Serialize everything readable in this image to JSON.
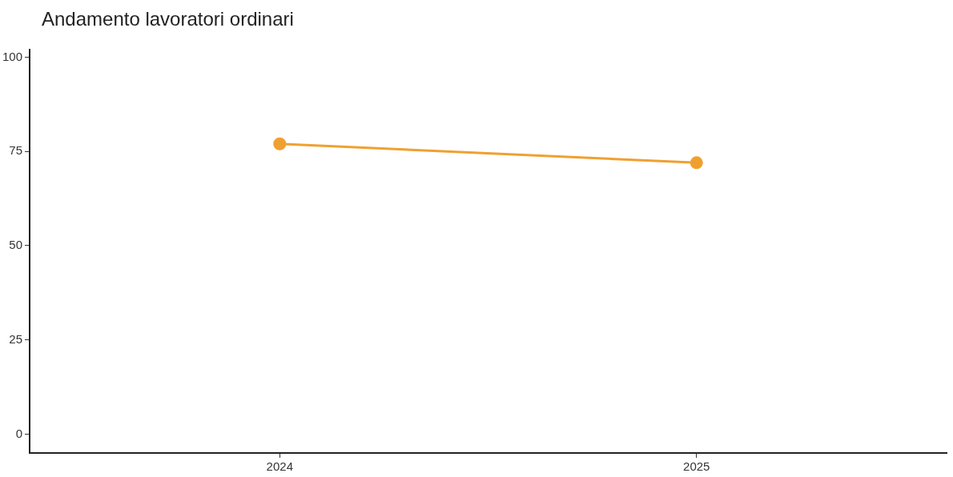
{
  "chart_data": {
    "type": "line",
    "title": "Andamento lavoratori ordinari",
    "categories": [
      "2024",
      "2025"
    ],
    "series": [
      {
        "color": "#f0a030",
        "values": [
          77,
          72
        ]
      }
    ],
    "ylim": [
      -5,
      102
    ],
    "yticks": [
      0,
      25,
      50,
      75,
      100
    ],
    "grid": false,
    "legend": false,
    "marker": "circle",
    "line_style": "solid"
  }
}
